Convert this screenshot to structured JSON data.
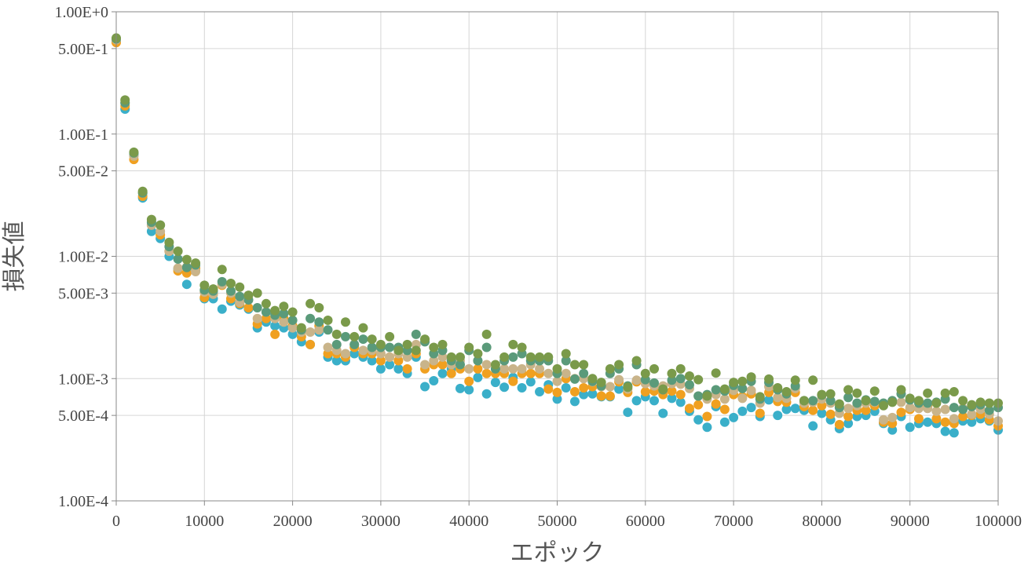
{
  "chart_data": {
    "type": "scatter",
    "xlabel": "エポック",
    "ylabel": "損失値",
    "xlim": [
      0,
      100000
    ],
    "ylim": [
      0.0001,
      1
    ],
    "yscale": "log",
    "grid": true,
    "x_ticks": [
      "0",
      "10000",
      "20000",
      "30000",
      "40000",
      "50000",
      "60000",
      "70000",
      "80000",
      "90000",
      "100000"
    ],
    "y_ticks": [
      {
        "value": 1,
        "label": "1.00E+0"
      },
      {
        "value": 0.5,
        "label": "5.00E-1"
      },
      {
        "value": 0.1,
        "label": "1.00E-1"
      },
      {
        "value": 0.05,
        "label": "5.00E-2"
      },
      {
        "value": 0.01,
        "label": "1.00E-2"
      },
      {
        "value": 0.005,
        "label": "5.00E-3"
      },
      {
        "value": 0.001,
        "label": "1.00E-3"
      },
      {
        "value": 0.0005,
        "label": "5.00E-4"
      },
      {
        "value": 0.0001,
        "label": "1.00E-4"
      }
    ],
    "x": [
      0,
      1000,
      2000,
      3000,
      4000,
      5000,
      6000,
      7000,
      8000,
      9000,
      10000,
      11000,
      12000,
      13000,
      14000,
      15000,
      16000,
      17000,
      18000,
      19000,
      20000,
      21000,
      22000,
      23000,
      24000,
      25000,
      26000,
      27000,
      28000,
      29000,
      30000,
      31000,
      32000,
      33000,
      34000,
      35000,
      36000,
      37000,
      38000,
      39000,
      40000,
      41000,
      42000,
      43000,
      44000,
      45000,
      46000,
      47000,
      48000,
      49000,
      50000,
      51000,
      52000,
      53000,
      54000,
      55000,
      56000,
      57000,
      58000,
      59000,
      60000,
      61000,
      62000,
      63000,
      64000,
      65000,
      66000,
      67000,
      68000,
      69000,
      70000,
      71000,
      72000,
      73000,
      74000,
      75000,
      76000,
      77000,
      78000,
      79000,
      80000,
      81000,
      82000,
      83000,
      84000,
      85000,
      86000,
      87000,
      88000,
      89000,
      90000,
      91000,
      92000,
      93000,
      94000,
      95000,
      96000,
      97000,
      98000,
      99000,
      100000
    ],
    "series": [
      {
        "color": "#3aafc9",
        "values": [
          0.57,
          0.16,
          0.068,
          0.03,
          0.016,
          0.014,
          0.01,
          0.0079,
          0.0059,
          0.0076,
          0.0045,
          0.0045,
          0.0037,
          0.0043,
          0.004,
          0.0037,
          0.0026,
          0.0029,
          0.0027,
          0.0026,
          0.0023,
          0.002,
          0.0019,
          0.0024,
          0.0015,
          0.0014,
          0.0014,
          0.0016,
          0.0015,
          0.0014,
          0.0012,
          0.0013,
          0.0012,
          0.0011,
          0.0015,
          0.00086,
          0.00096,
          0.0011,
          0.0012,
          0.00083,
          0.00081,
          0.00102,
          0.00075,
          0.00093,
          0.00085,
          0.00102,
          0.00084,
          0.00094,
          0.00078,
          0.00089,
          0.00068,
          0.00084,
          0.00065,
          0.00074,
          0.00075,
          0.00071,
          0.00071,
          0.00082,
          0.00053,
          0.00066,
          0.00071,
          0.00066,
          0.00052,
          0.00069,
          0.00064,
          0.00054,
          0.00046,
          0.0004,
          0.00059,
          0.00044,
          0.00048,
          0.00054,
          0.00058,
          0.00049,
          0.00067,
          0.0005,
          0.00056,
          0.00057,
          0.00055,
          0.00041,
          0.00052,
          0.00046,
          0.00039,
          0.00043,
          0.00049,
          0.0005,
          0.00054,
          0.00043,
          0.00038,
          0.00049,
          0.0004,
          0.00043,
          0.00044,
          0.00043,
          0.00037,
          0.00036,
          0.00045,
          0.00044,
          0.00047,
          0.00045,
          0.00038
        ]
      },
      {
        "color": "#f0a020",
        "values": [
          0.56,
          0.17,
          0.062,
          0.031,
          0.018,
          0.015,
          0.011,
          0.0076,
          0.0073,
          0.008,
          0.0046,
          0.0049,
          0.0058,
          0.0045,
          0.0041,
          0.0038,
          0.0028,
          0.0031,
          0.0023,
          0.0031,
          0.0027,
          0.0022,
          0.0019,
          0.0027,
          0.0016,
          0.0016,
          0.0015,
          0.0018,
          0.0016,
          0.0016,
          0.0014,
          0.0015,
          0.0014,
          0.0012,
          0.0016,
          0.0012,
          0.0013,
          0.0013,
          0.0011,
          0.0012,
          0.00095,
          0.0012,
          0.0011,
          0.0011,
          0.0011,
          0.00095,
          0.0011,
          0.0011,
          0.0011,
          0.00082,
          0.00077,
          0.001,
          0.00078,
          0.00084,
          0.00086,
          0.00072,
          0.00072,
          0.00094,
          0.00077,
          0.00094,
          0.00078,
          0.00079,
          0.00074,
          0.00079,
          0.00074,
          0.00057,
          0.00061,
          0.00049,
          0.00062,
          0.00056,
          0.00074,
          0.00071,
          0.00075,
          0.00052,
          0.00077,
          0.00065,
          0.00064,
          0.00077,
          0.00059,
          0.00055,
          0.0006,
          0.00051,
          0.00042,
          0.00049,
          0.00055,
          0.00055,
          0.0006,
          0.00044,
          0.00043,
          0.00053,
          0.00056,
          0.00047,
          0.00059,
          0.00047,
          0.00044,
          0.00043,
          0.00049,
          0.0005,
          0.00051,
          0.00046,
          0.00041
        ]
      },
      {
        "color": "#c9b48a",
        "values": [
          0.59,
          0.18,
          0.066,
          0.033,
          0.018,
          0.016,
          0.011,
          0.008,
          0.0082,
          0.0075,
          0.0051,
          0.0049,
          0.0059,
          0.005,
          0.0042,
          0.0044,
          0.0031,
          0.0035,
          0.0031,
          0.0029,
          0.0026,
          0.0024,
          0.0024,
          0.0025,
          0.0018,
          0.0017,
          0.0016,
          0.0019,
          0.0017,
          0.0017,
          0.0016,
          0.0015,
          0.0016,
          0.0015,
          0.0019,
          0.0013,
          0.0014,
          0.0015,
          0.0013,
          0.0014,
          0.0012,
          0.0014,
          0.0013,
          0.0012,
          0.0012,
          0.0012,
          0.0012,
          0.0013,
          0.0012,
          0.0011,
          0.00095,
          0.0011,
          0.001,
          0.001,
          0.00094,
          0.00086,
          0.00086,
          0.00098,
          0.00082,
          0.00097,
          0.00091,
          0.00087,
          0.00087,
          0.00091,
          0.0009,
          0.00083,
          0.00072,
          0.00068,
          0.00074,
          0.00068,
          0.0008,
          0.00069,
          0.0008,
          0.00063,
          0.00086,
          0.0007,
          0.00069,
          0.00083,
          0.00063,
          0.00064,
          0.00068,
          0.00063,
          0.00052,
          0.00057,
          0.0006,
          0.00063,
          0.00064,
          0.00046,
          0.00048,
          0.00064,
          0.00058,
          0.00057,
          0.00057,
          0.00054,
          0.00056,
          0.00047,
          0.00057,
          0.00051,
          0.00056,
          0.00051,
          0.00045
        ]
      },
      {
        "color": "#5a9a7a",
        "values": [
          0.6,
          0.18,
          0.07,
          0.033,
          0.019,
          0.018,
          0.012,
          0.0095,
          0.0081,
          0.0085,
          0.0053,
          0.0052,
          0.0062,
          0.0052,
          0.0047,
          0.0044,
          0.0038,
          0.0035,
          0.0033,
          0.0034,
          0.003,
          0.0025,
          0.0031,
          0.0029,
          0.0025,
          0.0019,
          0.0022,
          0.0019,
          0.0021,
          0.0018,
          0.0018,
          0.0018,
          0.0018,
          0.0017,
          0.0023,
          0.002,
          0.0016,
          0.0017,
          0.0014,
          0.0013,
          0.0017,
          0.0014,
          0.0018,
          0.0012,
          0.0014,
          0.0015,
          0.0016,
          0.0014,
          0.0014,
          0.0014,
          0.0011,
          0.0014,
          0.00099,
          0.0011,
          0.00095,
          0.00087,
          0.0011,
          0.0012,
          0.00087,
          0.0013,
          0.00098,
          0.00092,
          0.00081,
          0.00097,
          0.001,
          0.00089,
          0.00072,
          0.00074,
          0.00081,
          0.00079,
          0.00088,
          0.00083,
          0.00095,
          0.00068,
          0.00093,
          0.00081,
          0.00075,
          0.00087,
          0.00066,
          0.00066,
          0.00073,
          0.00066,
          0.00058,
          0.0007,
          0.00063,
          0.00067,
          0.00065,
          0.00063,
          0.00066,
          0.00075,
          0.00067,
          0.00063,
          0.00063,
          0.00064,
          0.00068,
          0.00058,
          0.00056,
          0.00059,
          0.00061,
          0.00055,
          0.00058
        ]
      },
      {
        "color": "#7a9a4a",
        "values": [
          0.61,
          0.19,
          0.071,
          0.034,
          0.02,
          0.018,
          0.013,
          0.011,
          0.0094,
          0.0088,
          0.0058,
          0.0054,
          0.0078,
          0.006,
          0.0056,
          0.0048,
          0.005,
          0.0041,
          0.0036,
          0.0039,
          0.0035,
          0.0026,
          0.0041,
          0.0038,
          0.003,
          0.0023,
          0.0029,
          0.0022,
          0.0026,
          0.0021,
          0.0019,
          0.0022,
          0.0017,
          0.0019,
          0.0017,
          0.0021,
          0.0018,
          0.0019,
          0.0015,
          0.0015,
          0.0018,
          0.0016,
          0.0023,
          0.0013,
          0.0015,
          0.0019,
          0.0018,
          0.0015,
          0.0015,
          0.0015,
          0.0012,
          0.0016,
          0.0013,
          0.0013,
          0.001,
          0.00093,
          0.0012,
          0.0013,
          0.00085,
          0.0014,
          0.0011,
          0.0012,
          0.00082,
          0.0011,
          0.0012,
          0.00105,
          0.00098,
          0.00072,
          0.00111,
          0.00082,
          0.00093,
          0.00095,
          0.00103,
          0.00071,
          0.00099,
          0.00084,
          0.00078,
          0.00097,
          0.00066,
          0.00097,
          0.00074,
          0.00075,
          0.00062,
          0.00081,
          0.00076,
          0.00066,
          0.00079,
          0.0006,
          0.00064,
          0.00081,
          0.00069,
          0.00066,
          0.00076,
          0.00063,
          0.00076,
          0.00078,
          0.00066,
          0.00061,
          0.00064,
          0.00063,
          0.00063
        ]
      }
    ]
  }
}
